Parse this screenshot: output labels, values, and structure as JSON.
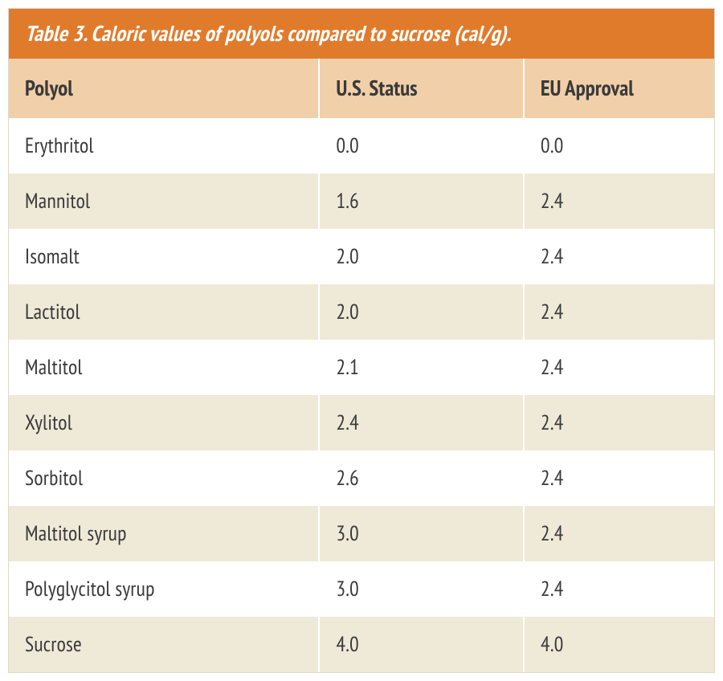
{
  "table": {
    "type": "table",
    "title": "Table 3. Caloric values of polyols compared to sucrose (cal/g).",
    "columns": [
      "Polyol",
      "U.S. Status",
      "EU Approval"
    ],
    "column_widths_pct": [
      44,
      29,
      27
    ],
    "rows": [
      [
        "Erythritol",
        "0.0",
        "0.0"
      ],
      [
        "Mannitol",
        "1.6",
        "2.4"
      ],
      [
        "Isomalt",
        "2.0",
        "2.4"
      ],
      [
        "Lactitol",
        "2.0",
        "2.4"
      ],
      [
        "Maltitol",
        "2.1",
        "2.4"
      ],
      [
        "Xylitol",
        "2.4",
        "2.4"
      ],
      [
        "Sorbitol",
        "2.6",
        "2.4"
      ],
      [
        "Maltitol syrup",
        "3.0",
        "2.4"
      ],
      [
        "Polyglycitol syrup",
        "3.0",
        "2.4"
      ],
      [
        "Sucrose",
        "4.0",
        "4.0"
      ]
    ],
    "title_bg_color": "#e07b2c",
    "title_text_color": "#ffffff",
    "title_fontsize": 27,
    "title_fontstyle": "italic",
    "header_bg_color": "#f1cfa8",
    "header_text_color": "#3a3a3a",
    "header_fontsize": 27,
    "header_fontweight": "bold",
    "row_odd_bg_color": "#ffffff",
    "row_even_bg_color": "#efe9d8",
    "cell_text_color": "#3a3a3a",
    "cell_fontsize": 26,
    "cell_divider_color": "#ffffff",
    "font_family": "PT Sans Narrow, Arial Narrow, Arial, sans-serif"
  }
}
